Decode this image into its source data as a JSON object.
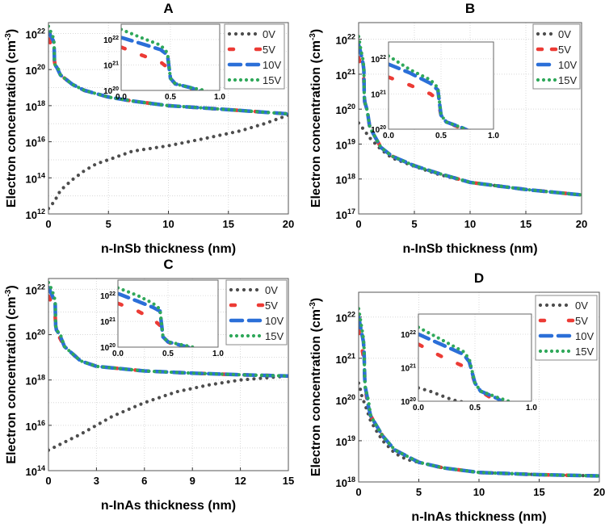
{
  "chart_data": [
    {
      "type": "line",
      "panel": "A",
      "title": "A",
      "xlabel": "n-InSb thickness (nm)",
      "ylabel": "Electron concentration (cm",
      "ylabel_sup": "-3",
      "ylabel_end": ")",
      "xlim": [
        0,
        20
      ],
      "ylim": [
        1000000000000.0,
        4e+22
      ],
      "yscale": "log",
      "xticks": [
        0,
        5,
        10,
        15,
        20
      ],
      "yticks_exp": [
        12,
        14,
        16,
        18,
        20,
        22
      ],
      "grid": true,
      "legend": "top-right",
      "inset": {
        "xlim": [
          0,
          1
        ],
        "ylim": [
          1e+20,
          4e+22
        ],
        "xticks": [
          "0.0",
          "0.5",
          "1.0"
        ],
        "xtick_vals": [
          0,
          0.5,
          1
        ],
        "yticks_exp": [
          20,
          21,
          22
        ]
      },
      "series": [
        {
          "name": "0V",
          "x": [
            0,
            0.5,
            1,
            2,
            3,
            4,
            5,
            7,
            10,
            13,
            16,
            18,
            20
          ],
          "y": [
            2000000000000.0,
            5000000000000.0,
            20000000000000.0,
            80000000000000.0,
            250000000000000.0,
            600000000000000.0,
            1000000000000000.0,
            3000000000000000.0,
            6000000000000000.0,
            1.5e+16,
            4e+16,
            1e+17,
            3e+17
          ]
        },
        {
          "name": "5V",
          "x": [
            0,
            0.2,
            0.4,
            0.47,
            0.5,
            0.55,
            0.65,
            1,
            2,
            3,
            5,
            7,
            10,
            15,
            20
          ],
          "y": [
            5e+21,
            2.5e+21,
            1.3e+21,
            8e+20,
            3e+20,
            1.8e+20,
            1.1e+20,
            5e+19,
            1.5e+19,
            7e+18,
            3e+18,
            1.8e+18,
            1e+18,
            6e+17,
            3.5e+17
          ]
        },
        {
          "name": "10V",
          "x": [
            0,
            0.2,
            0.4,
            0.47,
            0.5,
            0.55,
            0.7,
            1,
            2,
            3,
            5,
            7,
            10,
            15,
            20
          ],
          "y": [
            1.2e+22,
            7e+21,
            4e+21,
            2.5e+21,
            3e+20,
            1.8e+20,
            1.3e+20,
            5e+19,
            1.5e+19,
            7e+18,
            3e+18,
            1.8e+18,
            1e+18,
            6e+17,
            3.5e+17
          ]
        },
        {
          "name": "15V",
          "x": [
            0,
            0.2,
            0.4,
            0.47,
            0.5,
            0.55,
            0.7,
            0.85,
            1,
            2,
            3,
            5,
            7,
            10,
            15,
            20
          ],
          "y": [
            2.5e+22,
            1.2e+22,
            6e+21,
            3e+21,
            3e+20,
            1.8e+20,
            1.3e+20,
            1e+20,
            5e+19,
            1.5e+19,
            7e+18,
            3e+18,
            1.8e+18,
            1e+18,
            6e+17,
            3.5e+17
          ]
        }
      ]
    },
    {
      "type": "line",
      "panel": "B",
      "title": "B",
      "xlabel": "n-InSb thickness (nm)",
      "ylabel": "Electron concentration (cm",
      "ylabel_sup": "-3",
      "ylabel_end": ")",
      "xlim": [
        0,
        20
      ],
      "ylim": [
        1e+17,
        3e+22
      ],
      "yscale": "log",
      "xticks": [
        0,
        5,
        10,
        15,
        20
      ],
      "yticks_exp": [
        17,
        18,
        19,
        20,
        21,
        22
      ],
      "grid": true,
      "legend": "top-right",
      "inset": {
        "xlim": [
          0,
          1
        ],
        "ylim": [
          1e+20,
          3e+22
        ],
        "xticks": [
          "0.0",
          "0.5",
          "1.0"
        ],
        "xtick_vals": [
          0,
          0.5,
          1
        ],
        "yticks_exp": [
          20,
          21,
          22
        ]
      },
      "series": [
        {
          "name": "0V",
          "x": [
            0,
            0.5,
            1,
            2,
            3,
            5,
            7,
            10,
            15,
            20
          ],
          "y": [
            4e+19,
            2.5e+19,
            1.5e+19,
            7e+18,
            4e+18,
            2.3e+18,
            1.4e+18,
            8e+17,
            5e+17,
            3.5e+17
          ]
        },
        {
          "name": "5V",
          "x": [
            0,
            0.2,
            0.4,
            0.47,
            0.5,
            0.55,
            0.65,
            0.8,
            1,
            2,
            3,
            5,
            7,
            10,
            15,
            20
          ],
          "y": [
            3e+21,
            1.8e+21,
            1e+21,
            7e+20,
            2.5e+20,
            1.6e+20,
            1.2e+20,
            8e+19,
            3e+19,
            8e+18,
            4.5e+18,
            2.4e+18,
            1.5e+18,
            8e+17,
            5e+17,
            3.5e+17
          ]
        },
        {
          "name": "10V",
          "x": [
            0,
            0.2,
            0.4,
            0.47,
            0.5,
            0.55,
            0.7,
            0.8,
            1,
            2,
            3,
            5,
            7,
            10,
            15,
            20
          ],
          "y": [
            7e+21,
            4e+21,
            2e+21,
            1.3e+21,
            2.5e+20,
            1.6e+20,
            1.1e+20,
            8e+19,
            3e+19,
            8e+18,
            4.5e+18,
            2.4e+18,
            1.5e+18,
            8e+17,
            5e+17,
            3.5e+17
          ]
        },
        {
          "name": "15V",
          "x": [
            0,
            0.2,
            0.4,
            0.47,
            0.5,
            0.55,
            0.7,
            0.8,
            1,
            2,
            3,
            5,
            7,
            10,
            15,
            20
          ],
          "y": [
            1.2e+22,
            5e+21,
            2.5e+21,
            1.5e+21,
            2.5e+20,
            1.6e+20,
            1.1e+20,
            8e+19,
            3e+19,
            8e+18,
            4.5e+18,
            2.4e+18,
            1.5e+18,
            8e+17,
            5e+17,
            3.5e+17
          ]
        }
      ]
    },
    {
      "type": "line",
      "panel": "C",
      "title": "C",
      "xlabel": "n-InAs thickness (nm)",
      "ylabel": "Electron concentration (cm",
      "ylabel_sup": "-3",
      "ylabel_end": ")",
      "xlim": [
        0,
        15
      ],
      "ylim": [
        100000000000000.0,
        3e+22
      ],
      "yscale": "log",
      "xticks": [
        0,
        3,
        6,
        9,
        12,
        15
      ],
      "yticks_exp": [
        14,
        16,
        18,
        20,
        22
      ],
      "grid": true,
      "legend": "top-right",
      "inset": {
        "xlim": [
          0,
          1
        ],
        "ylim": [
          1e+20,
          4e+22
        ],
        "xticks": [
          "0.0",
          "0.5",
          "1.0"
        ],
        "xtick_vals": [
          0,
          0.5,
          1
        ],
        "yticks_exp": [
          20,
          21,
          22
        ]
      },
      "series": [
        {
          "name": "0V",
          "x": [
            0,
            0.5,
            1,
            2,
            3,
            4,
            6,
            8,
            10,
            12,
            15
          ],
          "y": [
            800000000000000.0,
            1200000000000000.0,
            1800000000000000.0,
            4000000000000000.0,
            1e+16,
            2.5e+16,
            1e+17,
            3e+17,
            6e+17,
            1e+18,
            1.5e+18
          ]
        },
        {
          "name": "5V",
          "x": [
            0,
            0.2,
            0.35,
            0.42,
            0.45,
            0.5,
            0.6,
            1,
            2,
            3,
            6,
            9,
            12,
            15
          ],
          "y": [
            5e+21,
            2.5e+21,
            1.2e+21,
            7e+20,
            2.5e+20,
            1.6e+20,
            1e+20,
            3e+19,
            7e+18,
            4e+18,
            2.5e+18,
            2e+18,
            1.7e+18,
            1.5e+18
          ]
        },
        {
          "name": "10V",
          "x": [
            0,
            0.2,
            0.35,
            0.42,
            0.45,
            0.5,
            0.7,
            1,
            2,
            3,
            6,
            9,
            12,
            15
          ],
          "y": [
            1.2e+22,
            6e+21,
            3.5e+21,
            2.5e+21,
            2.5e+20,
            1.6e+20,
            1e+20,
            3e+19,
            7e+18,
            4e+18,
            2.5e+18,
            2e+18,
            1.7e+18,
            1.5e+18
          ]
        },
        {
          "name": "15V",
          "x": [
            0,
            0.2,
            0.35,
            0.42,
            0.45,
            0.5,
            0.75,
            1,
            2,
            3,
            6,
            9,
            12,
            15
          ],
          "y": [
            2e+22,
            1e+22,
            5e+21,
            3e+21,
            2.5e+20,
            1.6e+20,
            1e+20,
            3e+19,
            7e+18,
            4e+18,
            2.5e+18,
            2e+18,
            1.7e+18,
            1.5e+18
          ]
        }
      ]
    },
    {
      "type": "line",
      "panel": "D",
      "title": "D",
      "xlabel": "n-InAs thickness (nm)",
      "ylabel": "Electron concentration (cm",
      "ylabel_sup": "-3",
      "ylabel_end": ")",
      "xlim": [
        0,
        20
      ],
      "ylim": [
        1e+18,
        4e+22
      ],
      "yscale": "log",
      "xticks": [
        0,
        5,
        10,
        15,
        20
      ],
      "yticks_exp": [
        18,
        19,
        20,
        21,
        22
      ],
      "grid": true,
      "legend": "top-right",
      "inset": {
        "xlim": [
          0,
          1
        ],
        "ylim": [
          1e+20,
          4e+22
        ],
        "xticks": [
          "0.0",
          "0.5",
          "1.0"
        ],
        "xtick_vals": [
          0,
          0.5,
          1
        ],
        "yticks_exp": [
          20,
          21,
          22
        ]
      },
      "series": [
        {
          "name": "0V",
          "x": [
            0,
            0.1,
            0.3,
            0.5,
            1,
            1.5,
            2,
            3,
            4,
            5,
            7,
            10,
            15,
            20
          ],
          "y": [
            2.5e+20,
            2e+20,
            1.1e+20,
            8e+19,
            3e+19,
            1.7e+19,
            1e+19,
            5e+18,
            3.5e+18,
            3e+18,
            2.2e+18,
            1.7e+18,
            1.5e+18,
            1.4e+18
          ]
        },
        {
          "name": "5V",
          "x": [
            0,
            0.2,
            0.4,
            0.47,
            0.5,
            0.55,
            0.65,
            0.8,
            1,
            2,
            3,
            5,
            7,
            10,
            15,
            20
          ],
          "y": [
            5e+21,
            2.2e+21,
            1.1e+21,
            7e+20,
            3.5e+20,
            2e+20,
            1.2e+20,
            7e+19,
            4e+19,
            1.3e+19,
            6e+18,
            3e+18,
            2.2e+18,
            1.7e+18,
            1.5e+18,
            1.4e+18
          ]
        },
        {
          "name": "10V",
          "x": [
            0,
            0.2,
            0.4,
            0.45,
            0.5,
            0.55,
            0.7,
            0.8,
            1,
            2,
            3,
            5,
            7,
            10,
            15,
            20
          ],
          "y": [
            1e+22,
            5e+21,
            2.5e+21,
            1.5e+21,
            3.5e+20,
            2e+20,
            1.2e+20,
            7e+19,
            4e+19,
            1.3e+19,
            6e+18,
            3e+18,
            2.2e+18,
            1.7e+18,
            1.5e+18,
            1.4e+18
          ]
        },
        {
          "name": "15V",
          "x": [
            0,
            0.2,
            0.4,
            0.45,
            0.5,
            0.55,
            0.7,
            0.8,
            1,
            2,
            3,
            5,
            7,
            10,
            15,
            20
          ],
          "y": [
            1.6e+22,
            7e+21,
            3e+21,
            1.8e+21,
            3.5e+20,
            2e+20,
            1.3e+20,
            1e+20,
            4e+19,
            1.3e+19,
            6e+18,
            3e+18,
            2.2e+18,
            1.7e+18,
            1.5e+18,
            1.4e+18
          ]
        }
      ]
    }
  ],
  "colors": {
    "0V": "#4d4d4d",
    "5V": "#ec3b35",
    "10V": "#2b6fd8",
    "15V": "#2fa85a"
  }
}
